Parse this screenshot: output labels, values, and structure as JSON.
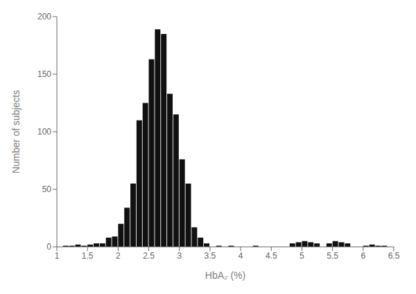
{
  "chart_data": {
    "type": "bar",
    "xlabel": "HbA₂ (%)",
    "ylabel": "Number of subjects",
    "x": [
      1.15,
      1.25,
      1.35,
      1.45,
      1.55,
      1.65,
      1.75,
      1.85,
      1.95,
      2.05,
      2.15,
      2.25,
      2.35,
      2.45,
      2.55,
      2.65,
      2.75,
      2.85,
      2.95,
      3.05,
      3.15,
      3.25,
      3.35,
      3.45,
      3.65,
      3.85,
      4.25,
      4.85,
      4.95,
      5.05,
      5.15,
      5.25,
      5.45,
      5.55,
      5.65,
      5.75,
      6.05,
      6.15,
      6.25,
      6.35
    ],
    "values": [
      1,
      1,
      2,
      1,
      2,
      3,
      3,
      8,
      9,
      20,
      34,
      55,
      110,
      125,
      163,
      189,
      185,
      133,
      115,
      76,
      55,
      17,
      8,
      3,
      1,
      1,
      1,
      3,
      4,
      5,
      4,
      3,
      3,
      5,
      4,
      3,
      1,
      2,
      1,
      1
    ],
    "color": "#111111",
    "xlim": [
      1,
      6.5
    ],
    "ylim": [
      0,
      200
    ],
    "xticks": [
      1,
      1.5,
      2,
      2.5,
      3,
      3.5,
      4,
      4.5,
      5,
      5.5,
      6,
      6.5
    ],
    "yticks": [
      0,
      50,
      100,
      150,
      200
    ]
  }
}
